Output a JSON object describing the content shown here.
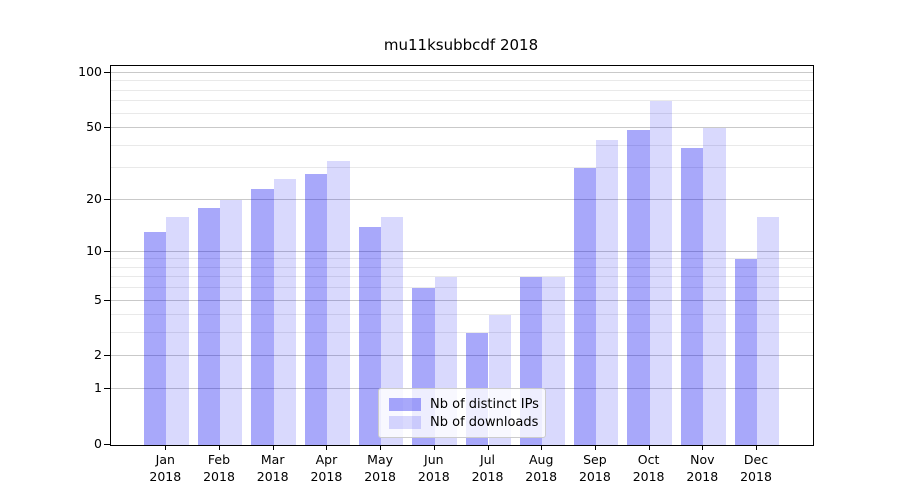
{
  "title": "mu11ksubbcdf 2018",
  "colors": {
    "bar_ips": "rgba(0,0,240,0.34)",
    "bar_downloads": "rgba(0,0,240,0.15)",
    "grid_major": "#c9c9c9",
    "grid_minor": "#e9e9e9",
    "spine": "#000000",
    "legend_bg": "rgba(255,255,255,0.8)"
  },
  "legend": {
    "items": [
      {
        "label": "Nb of distinct IPs",
        "series": "ips"
      },
      {
        "label": "Nb of downloads",
        "series": "downloads"
      }
    ]
  },
  "chart_data": {
    "type": "bar",
    "title": "mu11ksubbcdf 2018",
    "categories": [
      "Jan 2018",
      "Feb 2018",
      "Mar 2018",
      "Apr 2018",
      "May 2018",
      "Jun 2018",
      "Jul 2018",
      "Aug 2018",
      "Sep 2018",
      "Oct 2018",
      "Nov 2018",
      "Dec 2018"
    ],
    "series": [
      {
        "name": "Nb of distinct IPs",
        "values": [
          13,
          18,
          23,
          28,
          14,
          6,
          3,
          7,
          30,
          49,
          39,
          9
        ]
      },
      {
        "name": "Nb of downloads",
        "values": [
          16,
          20,
          26,
          33,
          16,
          7,
          4,
          7,
          43,
          70,
          50,
          16
        ]
      }
    ],
    "xlabel": "",
    "ylabel": "",
    "yscale": "symlog-log1p",
    "ylim": [
      0,
      108
    ],
    "y_major_ticks": [
      0,
      1,
      2,
      5,
      10,
      20,
      50,
      100
    ],
    "y_minor_gridlines": [
      3,
      4,
      6,
      7,
      8,
      9,
      30,
      40,
      60,
      70,
      80,
      90
    ],
    "grid": "on",
    "legend_position": "inside lower-center-right"
  }
}
